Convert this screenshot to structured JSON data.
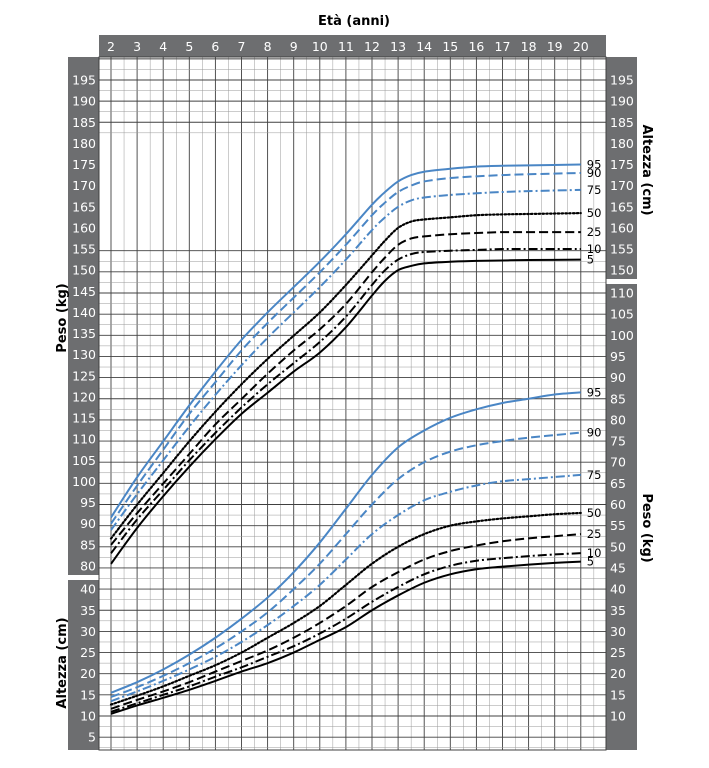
{
  "chart_data": {
    "type": "line",
    "title": "",
    "x_axis": {
      "label": "Età (anni)",
      "range": [
        2,
        20
      ],
      "ticks": [
        "2",
        "3",
        "4",
        "5",
        "6",
        "7",
        "8",
        "9",
        "10",
        "11",
        "12",
        "13",
        "14",
        "15",
        "16",
        "17",
        "18",
        "19",
        "20"
      ]
    },
    "y_axes": {
      "left_upper": {
        "label": "Peso (kg)",
        "ticks": [
          "80",
          "85",
          "90",
          "95",
          "100",
          "105",
          "110",
          "115",
          "120",
          "125",
          "130",
          "135",
          "140",
          "145",
          "150",
          "155",
          "160",
          "165",
          "170",
          "175",
          "180",
          "185",
          "190",
          "195"
        ]
      },
      "left_lower": {
        "label": "Altezza (cm)",
        "ticks": [
          "5",
          "10",
          "15",
          "20",
          "25",
          "30",
          "35",
          "40"
        ]
      },
      "right_upper": {
        "label": "Altezza (cm)",
        "ticks": [
          "150",
          "155",
          "160",
          "165",
          "170",
          "175",
          "180",
          "185",
          "190",
          "195"
        ]
      },
      "right_lower": {
        "label": "Peso (kg)",
        "ticks": [
          "10",
          "15",
          "20",
          "25",
          "30",
          "35",
          "40",
          "45",
          "50",
          "55",
          "60",
          "65",
          "70",
          "75",
          "80",
          "85",
          "90",
          "95",
          "100",
          "105",
          "110"
        ]
      }
    },
    "grid": true,
    "height_ages": [
      2,
      3,
      4,
      5,
      6,
      7,
      8,
      9,
      10,
      11,
      12,
      12.5,
      13,
      13.5,
      14,
      15,
      16,
      17,
      18,
      20
    ],
    "height_series": [
      {
        "name": "95",
        "style": "solid",
        "color": "#4a86c5",
        "values": [
          91.5,
          101,
          109.5,
          118,
          126,
          133.5,
          140,
          146,
          152,
          158.5,
          165.5,
          168.5,
          171,
          172.5,
          173.3,
          174,
          174.5,
          174.7,
          174.8,
          175
        ]
      },
      {
        "name": "90",
        "style": "dashed",
        "color": "#4a86c5",
        "values": [
          90,
          99,
          107.5,
          116,
          123.5,
          131,
          137.5,
          143.5,
          149.5,
          156,
          163,
          166,
          168.5,
          170,
          171,
          171.8,
          172.2,
          172.5,
          172.7,
          173
        ]
      },
      {
        "name": "75",
        "style": "dashdot",
        "color": "#4a86c5",
        "values": [
          88.5,
          97,
          105,
          113,
          120.5,
          127.5,
          134,
          140,
          146,
          152.5,
          159.5,
          162.5,
          165,
          166.5,
          167.2,
          167.8,
          168.2,
          168.5,
          168.7,
          169
        ]
      },
      {
        "name": "50",
        "style": "dotted",
        "color": "#000000",
        "values": [
          86.5,
          94.5,
          102,
          109.5,
          116.5,
          123,
          129,
          134.5,
          140,
          146.5,
          153.5,
          157,
          160,
          161.5,
          162,
          162.5,
          163,
          163.2,
          163.3,
          163.5
        ]
      },
      {
        "name": "25",
        "style": "dashed",
        "color": "#000000",
        "values": [
          85,
          92.5,
          99.5,
          106.5,
          113.5,
          119.5,
          125.5,
          131,
          136,
          142,
          149.5,
          153,
          156,
          157.5,
          158,
          158.5,
          158.8,
          159,
          159,
          159
        ]
      },
      {
        "name": "10",
        "style": "dashdot",
        "color": "#000000",
        "values": [
          83,
          91,
          98,
          105,
          111.5,
          117.5,
          123,
          128,
          133,
          139,
          146.5,
          150,
          152.5,
          153.8,
          154.3,
          154.6,
          154.8,
          155,
          155,
          155
        ]
      },
      {
        "name": "5",
        "style": "solid",
        "color": "#000000",
        "values": [
          80.5,
          89,
          96.5,
          103.5,
          110,
          116,
          121,
          126,
          130.5,
          136.5,
          144,
          147.5,
          150,
          151,
          151.6,
          152,
          152.2,
          152.3,
          152.4,
          152.5
        ]
      }
    ],
    "weight_ages": [
      2,
      3,
      4,
      5,
      6,
      7,
      8,
      9,
      10,
      11,
      12,
      13,
      14,
      15,
      16,
      17,
      18,
      19,
      20
    ],
    "weight_series": [
      {
        "name": "95",
        "style": "solid",
        "color": "#4a86c5",
        "values": [
          15.5,
          18,
          21,
          24.5,
          28.5,
          33,
          38,
          44,
          51,
          59,
          67,
          73.5,
          77.5,
          80.5,
          82.5,
          84,
          85,
          86,
          86.5
        ]
      },
      {
        "name": "90",
        "style": "dashed",
        "color": "#4a86c5",
        "values": [
          14.5,
          16.8,
          19.5,
          22.5,
          26,
          30,
          34.5,
          40,
          46,
          53,
          60,
          66,
          70,
          72.5,
          74,
          75,
          75.8,
          76.4,
          77
        ]
      },
      {
        "name": "75",
        "style": "dashdot",
        "color": "#4a86c5",
        "values": [
          13.5,
          15.8,
          18.3,
          21,
          24,
          27.5,
          31.5,
          36,
          41,
          47,
          53,
          57.5,
          61,
          63,
          64.5,
          65.5,
          66,
          66.5,
          67
        ]
      },
      {
        "name": "50",
        "style": "dotted",
        "color": "#000000",
        "values": [
          12.7,
          14.8,
          17,
          19.5,
          22,
          25,
          28.5,
          32,
          36,
          41,
          46,
          50,
          53,
          55,
          56,
          56.7,
          57.2,
          57.7,
          58
        ]
      },
      {
        "name": "25",
        "style": "dashed",
        "color": "#000000",
        "values": [
          11.7,
          13.8,
          15.8,
          18,
          20.5,
          23,
          25.5,
          28.5,
          32,
          36,
          40.5,
          44,
          47,
          49,
          50.3,
          51.3,
          52,
          52.5,
          53
        ]
      },
      {
        "name": "10",
        "style": "dashdot",
        "color": "#000000",
        "values": [
          11,
          13,
          15,
          17,
          19.3,
          21.5,
          24,
          26.5,
          29.5,
          33,
          37,
          40.5,
          43.5,
          45.5,
          46.7,
          47.3,
          47.8,
          48.2,
          48.5
        ]
      },
      {
        "name": "5",
        "style": "solid",
        "color": "#000000",
        "values": [
          10.5,
          12.5,
          14.3,
          16.2,
          18.3,
          20.5,
          22.5,
          25,
          28,
          31,
          35,
          38.5,
          41.5,
          43.5,
          44.7,
          45.3,
          45.8,
          46.2,
          46.5
        ]
      }
    ]
  }
}
